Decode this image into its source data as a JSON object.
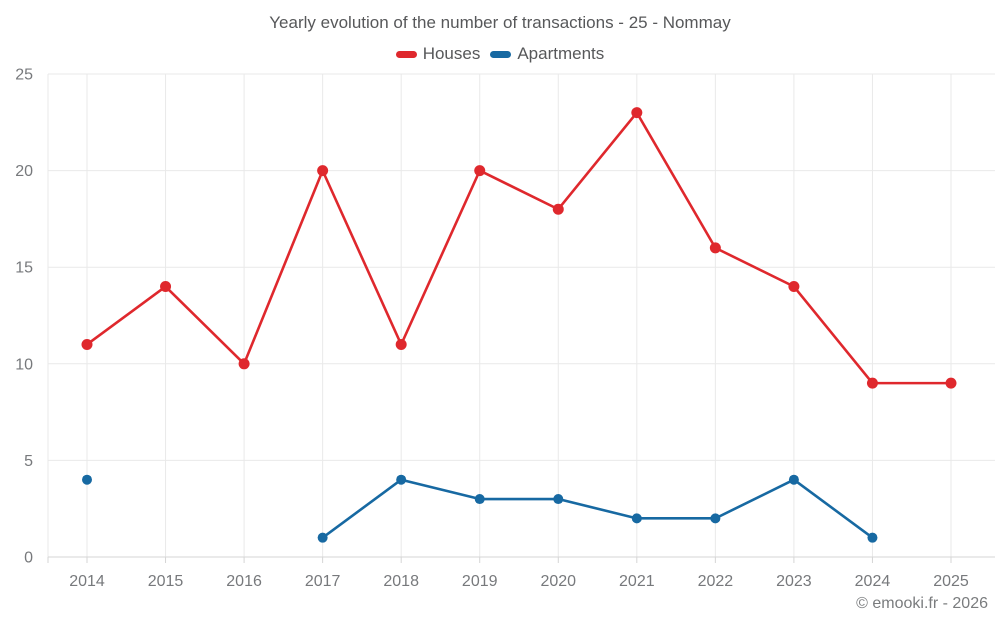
{
  "title": "Yearly evolution of the number of transactions - 25 - Nommay",
  "legend": {
    "items": [
      {
        "label": "Houses",
        "color": "#df282d"
      },
      {
        "label": "Apartments",
        "color": "#1769a2"
      }
    ]
  },
  "footer": {
    "copyright": "© emooki.fr - 2026"
  },
  "chart_data": {
    "type": "line",
    "title": "Yearly evolution of the number of transactions - 25 - Nommay",
    "categories": [
      "2014",
      "2015",
      "2016",
      "2017",
      "2018",
      "2019",
      "2020",
      "2021",
      "2022",
      "2023",
      "2024",
      "2025"
    ],
    "series": [
      {
        "name": "Houses",
        "color": "#df282d",
        "values": [
          11,
          14,
          10,
          20,
          11,
          20,
          18,
          23,
          16,
          14,
          9,
          9
        ]
      },
      {
        "name": "Apartments",
        "color": "#1769a2",
        "values": [
          4,
          null,
          null,
          1,
          4,
          3,
          3,
          2,
          2,
          4,
          1,
          null
        ]
      }
    ],
    "xlabel": "",
    "ylabel": "",
    "ylim": [
      0,
      25
    ],
    "yticks": [
      0,
      5,
      10,
      15,
      20,
      25
    ],
    "grid": true,
    "legend_position": "top"
  }
}
